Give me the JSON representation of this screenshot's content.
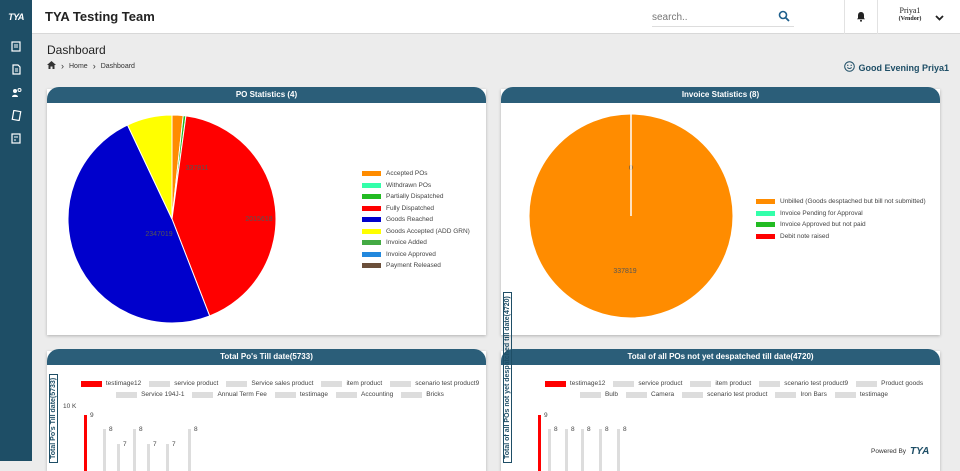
{
  "brand": {
    "logo_text": "TYA",
    "logo_sub": "Suite"
  },
  "app": {
    "title": "TYA Testing Team"
  },
  "search": {
    "placeholder": "search.."
  },
  "user": {
    "name": "Priya1",
    "role": "(Vendor)"
  },
  "page": {
    "title": "Dashboard",
    "breadcrumb": [
      "Home",
      "Dashboard"
    ]
  },
  "greeting": "Good Evening Priya1",
  "colors": {
    "sidebar": "#1e4e66",
    "header": "#2b5e79",
    "orange": "#ff8c00",
    "red": "#ff0000",
    "blue": "#0000cc",
    "yellow": "#ffff00"
  },
  "po_stats": {
    "title": "PO Statistics (4)",
    "chart_data": {
      "type": "pie",
      "title": "PO Statistics (4)",
      "slices": [
        {
          "label": "Accepted POs",
          "value": 82680,
          "color": "#ff8c00"
        },
        {
          "label": "Withdrawn POs",
          "value": 0,
          "color": "#33ffaa"
        },
        {
          "label": "Partially Dispatched",
          "value": 20000,
          "color": "#22bb22"
        },
        {
          "label": "Fully Dispatched",
          "value": 2015618,
          "color": "#ff0000"
        },
        {
          "label": "Goods Reached",
          "value": 2347019,
          "color": "#0000cc"
        },
        {
          "label": "Goods Accepted (ADD GRN)",
          "value": 337811,
          "color": "#ffff00"
        },
        {
          "label": "Invoice Added",
          "value": 0,
          "color": "#44aa44"
        },
        {
          "label": "Invoice Approved",
          "value": 0,
          "color": "#2288dd"
        },
        {
          "label": "Payment Released",
          "value": 0,
          "color": "#6b4f3a"
        }
      ],
      "data_labels": [
        "2347019",
        "2015618",
        "337811"
      ]
    }
  },
  "invoice_stats": {
    "title": "Invoice Statistics (8)",
    "chart_data": {
      "type": "pie",
      "title": "Invoice Statistics (8)",
      "slices": [
        {
          "label": "Unbilled (Goods desptached but bill not submitted)",
          "value": 337819,
          "color": "#ff8c00"
        },
        {
          "label": "Invoice Pending for Approval",
          "value": 0,
          "color": "#33ffaa"
        },
        {
          "label": "Invoice Approved but not paid",
          "value": 0,
          "color": "#22bb22"
        },
        {
          "label": "Debit note raised",
          "value": 0,
          "color": "#ff0000"
        }
      ],
      "data_labels": [
        "337819",
        "0"
      ]
    }
  },
  "total_pos": {
    "title": "Total Po's Till date(5733)",
    "ylabel": "Total Po's Till date(5733)",
    "tick": "10 K",
    "chart_data": {
      "type": "bar",
      "series": [
        {
          "name": "testimage12",
          "color": "#ff0000",
          "value_label": "9"
        },
        {
          "name": "service product",
          "color": "#dddddd",
          "value_label": "8"
        },
        {
          "name": "Service sales product",
          "color": "#dddddd",
          "value_label": "7"
        },
        {
          "name": "item product",
          "color": "#dddddd",
          "value_label": "8"
        },
        {
          "name": "scenario test product9",
          "color": "#dddddd",
          "value_label": "7"
        },
        {
          "name": "Service 194J-1",
          "color": "#dddddd",
          "value_label": "7"
        },
        {
          "name": "Annual Term Fee",
          "color": "#dddddd",
          "value_label": "8"
        },
        {
          "name": "testimage",
          "color": "#dddddd",
          "value_label": ""
        },
        {
          "name": "Accounting",
          "color": "#dddddd",
          "value_label": ""
        },
        {
          "name": "Bricks",
          "color": "#dddddd",
          "value_label": ""
        }
      ]
    }
  },
  "not_despatched": {
    "title": "Total of all POs not yet despatched till date(4720)",
    "ylabel": "Total of all POs not yet despatched till date(4720)",
    "tick": "10 K",
    "chart_data": {
      "type": "bar",
      "series": [
        {
          "name": "testimage12",
          "color": "#ff0000",
          "value_label": "9"
        },
        {
          "name": "service product",
          "color": "#dddddd",
          "value_label": "8"
        },
        {
          "name": "item product",
          "color": "#dddddd",
          "value_label": "8"
        },
        {
          "name": "scenario test product9",
          "color": "#dddddd",
          "value_label": "8"
        },
        {
          "name": "Product goods",
          "color": "#dddddd",
          "value_label": "8"
        },
        {
          "name": "Bulb",
          "color": "#dddddd",
          "value_label": "8"
        },
        {
          "name": "Camera",
          "color": "#dddddd",
          "value_label": ""
        },
        {
          "name": "scenario test product",
          "color": "#dddddd",
          "value_label": ""
        },
        {
          "name": "Iron Bars",
          "color": "#dddddd",
          "value_label": ""
        },
        {
          "name": "testimage",
          "color": "#dddddd",
          "value_label": ""
        }
      ]
    }
  },
  "footer": {
    "powered_by": "Powered By",
    "logo_text": "TYA",
    "logo_sub": "Suite"
  }
}
